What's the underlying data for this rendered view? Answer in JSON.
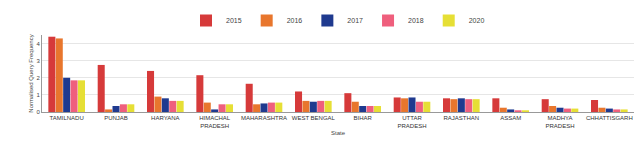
{
  "chart_data": {
    "type": "bar",
    "x_label": "State",
    "y_label": "Normalised Query Frequency",
    "categories": [
      "TAMILNADU",
      "PUNJAB",
      "HARYANA",
      "HIMACHAL PRADESH",
      "MAHARASHTRA",
      "WEST BENGAL",
      "BIHAR",
      "UTTAR PRADESH",
      "RAJASTHAN",
      "ASSAM",
      "MADHYA PRADESH",
      "CHHATTISGARH"
    ],
    "series": [
      {
        "name": "2015",
        "color": "#d63a3a",
        "values": [
          4.4,
          2.75,
          2.4,
          2.15,
          1.65,
          1.2,
          1.1,
          0.85,
          0.8,
          0.8,
          0.75,
          0.7
        ]
      },
      {
        "name": "2016",
        "color": "#e8762d",
        "values": [
          4.3,
          0.15,
          0.9,
          0.55,
          0.45,
          0.65,
          0.6,
          0.8,
          0.75,
          0.25,
          0.35,
          0.25
        ]
      },
      {
        "name": "2017",
        "color": "#1f3a8f",
        "values": [
          2.0,
          0.35,
          0.8,
          0.15,
          0.5,
          0.6,
          0.35,
          0.85,
          0.8,
          0.15,
          0.25,
          0.2
        ]
      },
      {
        "name": "2018",
        "color": "#ef5f7d",
        "values": [
          1.85,
          0.45,
          0.65,
          0.45,
          0.55,
          0.65,
          0.35,
          0.6,
          0.75,
          0.1,
          0.2,
          0.15
        ]
      },
      {
        "name": "2020",
        "color": "#e6df35",
        "values": [
          1.85,
          0.45,
          0.65,
          0.45,
          0.55,
          0.65,
          0.35,
          0.6,
          0.75,
          0.1,
          0.2,
          0.15
        ]
      }
    ],
    "ylim": [
      0,
      4.5
    ],
    "yticks": [
      0,
      1,
      2,
      3,
      4
    ],
    "grid": true,
    "legend": "top"
  }
}
